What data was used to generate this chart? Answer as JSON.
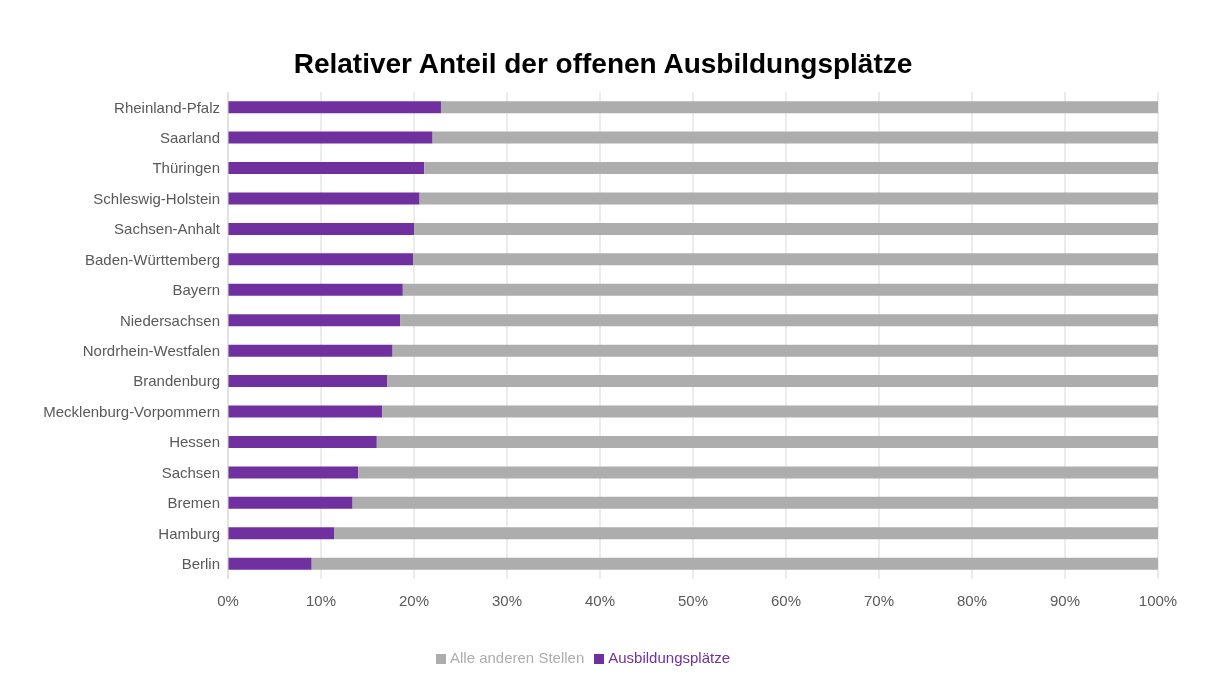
{
  "chart_data": {
    "type": "bar",
    "title": "Relativer Anteil der offenen Ausbildungsplätze",
    "orientation": "horizontal",
    "stacked": true,
    "categories": [
      "Rheinland-Pfalz",
      "Saarland",
      "Thüringen",
      "Schleswig-Holstein",
      "Sachsen-Anhalt",
      "Baden-Württemberg",
      "Bayern",
      "Niedersachsen",
      "Nordrhein-Westfalen",
      "Brandenburg",
      "Mecklenburg-Vorpommern",
      "Hessen",
      "Sachsen",
      "Bremen",
      "Hamburg",
      "Berlin"
    ],
    "series": [
      {
        "name": "Ausbildungsplätze",
        "color": "#7030a0",
        "values": [
          22.9,
          22.0,
          21.1,
          20.6,
          20.0,
          19.9,
          18.8,
          18.5,
          17.7,
          17.1,
          16.6,
          16.0,
          14.0,
          13.4,
          11.4,
          9.0
        ]
      },
      {
        "name": "Alle anderen Stellen",
        "color": "#adadad",
        "values": [
          77.1,
          78.0,
          78.9,
          79.4,
          80.0,
          80.1,
          81.2,
          81.5,
          82.3,
          82.9,
          83.4,
          84.0,
          86.0,
          86.6,
          88.6,
          91.0
        ]
      }
    ],
    "xlim": [
      0,
      100
    ],
    "xticks": [
      {
        "value": 0,
        "label": "0%"
      },
      {
        "value": 10,
        "label": "10%"
      },
      {
        "value": 20,
        "label": "20%"
      },
      {
        "value": 30,
        "label": "30%"
      },
      {
        "value": 40,
        "label": "40%"
      },
      {
        "value": 50,
        "label": "50%"
      },
      {
        "value": 60,
        "label": "60%"
      },
      {
        "value": 70,
        "label": "70%"
      },
      {
        "value": 80,
        "label": "80%"
      },
      {
        "value": 90,
        "label": "90%"
      },
      {
        "value": 100,
        "label": "100%"
      }
    ],
    "grid": "x",
    "legend": "bottom"
  }
}
